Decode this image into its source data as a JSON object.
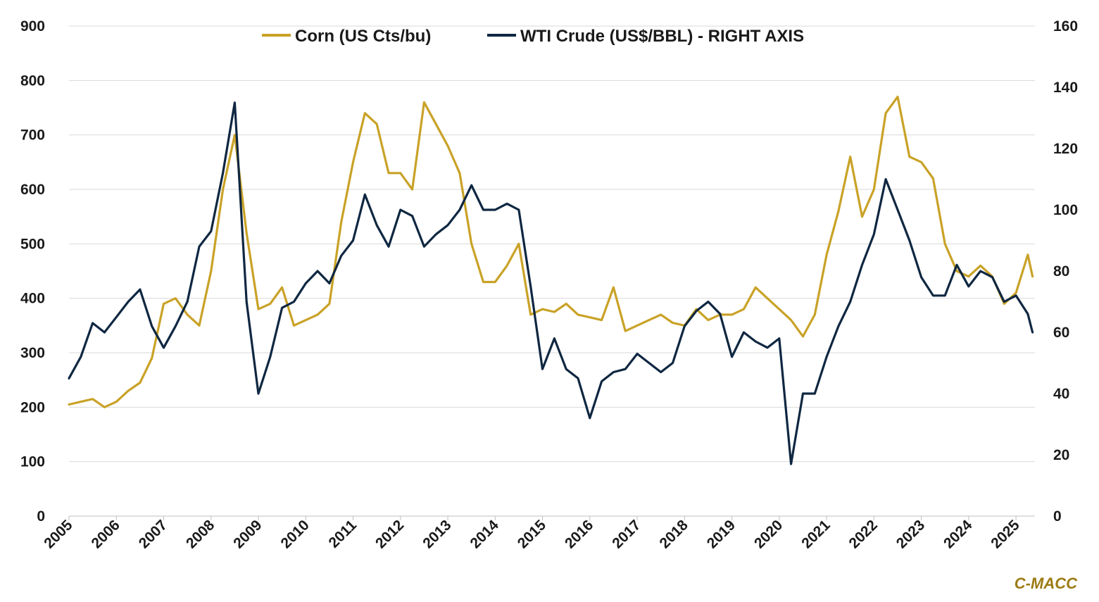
{
  "chart_data": {
    "type": "line",
    "title": "",
    "source_label": "C-MACC",
    "x": [
      2005.0,
      2005.25,
      2005.5,
      2005.75,
      2006.0,
      2006.25,
      2006.5,
      2006.75,
      2007.0,
      2007.25,
      2007.5,
      2007.75,
      2008.0,
      2008.25,
      2008.5,
      2008.75,
      2009.0,
      2009.25,
      2009.5,
      2009.75,
      2010.0,
      2010.25,
      2010.5,
      2010.75,
      2011.0,
      2011.25,
      2011.5,
      2011.75,
      2012.0,
      2012.25,
      2012.5,
      2012.75,
      2013.0,
      2013.25,
      2013.5,
      2013.75,
      2014.0,
      2014.25,
      2014.5,
      2014.75,
      2015.0,
      2015.25,
      2015.5,
      2015.75,
      2016.0,
      2016.25,
      2016.5,
      2016.75,
      2017.0,
      2017.25,
      2017.5,
      2017.75,
      2018.0,
      2018.25,
      2018.5,
      2018.75,
      2019.0,
      2019.25,
      2019.5,
      2019.75,
      2020.0,
      2020.25,
      2020.5,
      2020.75,
      2021.0,
      2021.25,
      2021.5,
      2021.75,
      2022.0,
      2022.25,
      2022.5,
      2022.75,
      2023.0,
      2023.25,
      2023.5,
      2023.75,
      2024.0,
      2024.25,
      2024.5,
      2024.75,
      2025.0,
      2025.25,
      2025.35
    ],
    "x_ticks": [
      "2005",
      "2006",
      "2007",
      "2008",
      "2009",
      "2010",
      "2011",
      "2012",
      "2013",
      "2014",
      "2015",
      "2016",
      "2017",
      "2018",
      "2019",
      "2020",
      "2021",
      "2022",
      "2023",
      "2024",
      "2025"
    ],
    "x_range": [
      2005,
      2025.4
    ],
    "y_left": {
      "label": "",
      "range": [
        0,
        900
      ],
      "ticks": [
        "0",
        "100",
        "200",
        "300",
        "400",
        "500",
        "600",
        "700",
        "800",
        "900"
      ]
    },
    "y_right": {
      "label": "",
      "range": [
        0,
        160
      ],
      "ticks": [
        "0",
        "20",
        "40",
        "60",
        "80",
        "100",
        "120",
        "140",
        "160"
      ]
    },
    "grid": true,
    "legend_position": "top-center",
    "series": [
      {
        "name": "Corn (US Cts/bu)",
        "axis": "left",
        "color": "#c9a227",
        "values": [
          205,
          210,
          215,
          200,
          210,
          230,
          245,
          290,
          390,
          400,
          370,
          350,
          450,
          600,
          700,
          520,
          380,
          390,
          420,
          350,
          360,
          370,
          390,
          540,
          650,
          740,
          720,
          630,
          630,
          600,
          760,
          720,
          680,
          630,
          500,
          430,
          430,
          460,
          500,
          370,
          380,
          375,
          390,
          370,
          365,
          360,
          420,
          340,
          350,
          360,
          370,
          355,
          350,
          380,
          360,
          370,
          370,
          380,
          420,
          400,
          380,
          360,
          330,
          370,
          480,
          560,
          660,
          550,
          600,
          740,
          770,
          660,
          650,
          620,
          500,
          450,
          440,
          460,
          440,
          390,
          410,
          480,
          440
        ]
      },
      {
        "name": "WTI Crude (US$/BBL) - RIGHT AXIS",
        "axis": "right",
        "color": "#0f2741",
        "values": [
          45,
          52,
          63,
          60,
          65,
          70,
          74,
          62,
          55,
          62,
          70,
          88,
          93,
          112,
          135,
          70,
          40,
          52,
          68,
          70,
          76,
          80,
          76,
          85,
          90,
          105,
          95,
          88,
          100,
          98,
          88,
          92,
          95,
          100,
          108,
          100,
          100,
          102,
          100,
          75,
          48,
          58,
          48,
          45,
          32,
          44,
          47,
          48,
          53,
          50,
          47,
          50,
          62,
          67,
          70,
          66,
          52,
          60,
          57,
          55,
          58,
          17,
          40,
          40,
          52,
          62,
          70,
          82,
          92,
          110,
          100,
          90,
          78,
          72,
          72,
          82,
          75,
          80,
          78,
          70,
          72,
          66,
          60
        ]
      }
    ]
  }
}
